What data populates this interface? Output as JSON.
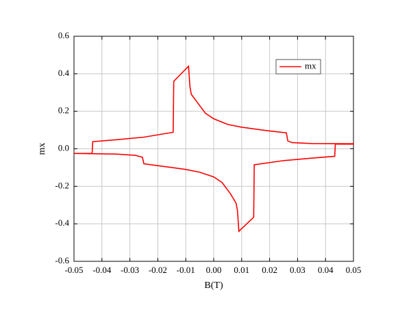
{
  "chart_data": {
    "type": "line",
    "x_label": "B(T)",
    "y_label": "mx",
    "x": [
      -0.05,
      -0.0435,
      -0.0433,
      -0.035,
      -0.025,
      -0.0145,
      -0.0143,
      -0.009,
      -0.0085,
      -0.008,
      -0.006,
      -0.005,
      -0.003,
      0,
      0.005,
      0.01,
      0.02,
      0.026,
      0.0265,
      0.028,
      0.035,
      0.05,
      0.05,
      0.0435,
      0.0433,
      0.035,
      0.025,
      0.0145,
      0.0143,
      0.009,
      0.0085,
      0.008,
      0.006,
      0.005,
      0.003,
      0,
      -0.005,
      -0.01,
      -0.02,
      -0.025,
      -0.0255,
      -0.028,
      -0.035,
      -0.05
    ],
    "series": [
      {
        "name": "mx",
        "color": "#ff0000",
        "values": [
          -0.025,
          -0.025,
          0.038,
          0.048,
          0.062,
          0.088,
          0.36,
          0.44,
          0.33,
          0.29,
          0.25,
          0.23,
          0.19,
          0.16,
          0.13,
          0.115,
          0.095,
          0.085,
          0.042,
          0.033,
          0.028,
          0.027,
          0.025,
          0.025,
          -0.04,
          -0.05,
          -0.063,
          -0.085,
          -0.365,
          -0.44,
          -0.33,
          -0.29,
          -0.24,
          -0.22,
          -0.18,
          -0.15,
          -0.125,
          -0.11,
          -0.09,
          -0.08,
          -0.045,
          -0.035,
          -0.028,
          -0.025
        ]
      }
    ],
    "xlim": [
      -0.05,
      0.05
    ],
    "xticks": [
      -0.05,
      -0.04,
      -0.03,
      -0.02,
      -0.01,
      {
        "value": 0,
        "label": "0.00"
      },
      0.01,
      0.02,
      0.03,
      0.04,
      0.05
    ],
    "ylim": [
      -0.6,
      0.6
    ],
    "yticks": [
      -0.6,
      -0.4,
      -0.2,
      {
        "value": 0,
        "label": "0.0"
      },
      0.2,
      0.4,
      0.6
    ],
    "grid": true,
    "legend": "upper right"
  }
}
